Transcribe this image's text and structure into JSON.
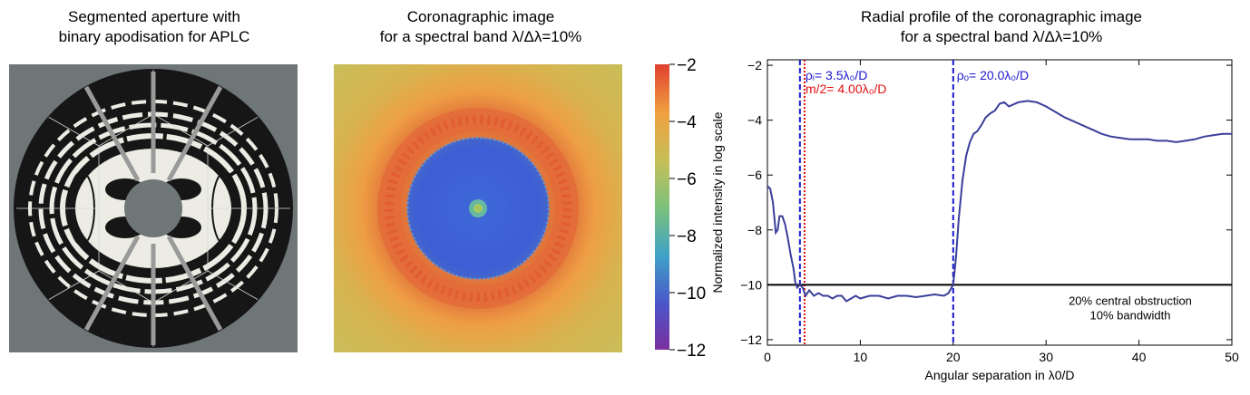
{
  "panels": {
    "aperture": {
      "title_line1": "Segmented aperture with",
      "title_line2": "binary apodisation for APLC"
    },
    "coronagraph": {
      "title_line1": "Coronagraphic image",
      "title_line2": "for a spectral band λ/Δλ=10%"
    },
    "profile": {
      "title_line1": "Radial profile of the coronagraphic image",
      "title_line2": "for a spectral band λ/Δλ=10%"
    }
  },
  "colorbar": {
    "ticks": [
      -2,
      -4,
      -6,
      -8,
      -10,
      -12
    ],
    "tick_labels": [
      "−2",
      "−4",
      "−6",
      "−8",
      "−10",
      "−12"
    ],
    "range": [
      -12,
      -2
    ],
    "colors": [
      "#7b2fa0",
      "#4a55c8",
      "#3fa2c8",
      "#7cc17a",
      "#c6bf58",
      "#f0a040",
      "#e04030"
    ]
  },
  "chart_data": {
    "type": "line",
    "title": "Radial profile of the coronagraphic image for a spectral band λ/Δλ=10%",
    "xlabel": "Angular separation in λ0/D",
    "ylabel": "Normalized intensity in log scale",
    "xlim": [
      0,
      50
    ],
    "ylim": [
      -12.2,
      -1.8
    ],
    "xticks": [
      0,
      10,
      20,
      30,
      40,
      50
    ],
    "yticks": [
      -2,
      -4,
      -6,
      -8,
      -10,
      -12
    ],
    "ytick_labels": [
      "−2",
      "−4",
      "−6",
      "−8",
      "−10",
      "−12"
    ],
    "series": [
      {
        "name": "Radial profile",
        "color": "#3a3f9a",
        "x": [
          0,
          0.3,
          0.6,
          0.9,
          1.1,
          1.3,
          1.6,
          1.9,
          2.2,
          2.5,
          2.8,
          3.0,
          3.2,
          3.5,
          3.8,
          4.1,
          4.5,
          5,
          5.5,
          6,
          6.5,
          7,
          7.5,
          8,
          8.5,
          9,
          9.5,
          10,
          11,
          12,
          13,
          14,
          15,
          16,
          17,
          18,
          19,
          19.5,
          20,
          20.3,
          20.6,
          21,
          21.4,
          21.8,
          22.2,
          22.6,
          23,
          23.5,
          24,
          24.5,
          25,
          25.5,
          26,
          27,
          28,
          29,
          30,
          31,
          32,
          33,
          34,
          35,
          36,
          37,
          38,
          39,
          40,
          41,
          42,
          43,
          44,
          45,
          46,
          47,
          48,
          49,
          50
        ],
        "y": [
          -6.4,
          -6.5,
          -7.0,
          -8.1,
          -8.0,
          -7.5,
          -7.5,
          -7.8,
          -8.3,
          -8.9,
          -9.4,
          -9.9,
          -10.1,
          -10.0,
          -10.1,
          -10.4,
          -10.2,
          -10.4,
          -10.3,
          -10.4,
          -10.4,
          -10.5,
          -10.4,
          -10.4,
          -10.6,
          -10.5,
          -10.4,
          -10.5,
          -10.4,
          -10.4,
          -10.5,
          -10.4,
          -10.4,
          -10.45,
          -10.4,
          -10.35,
          -10.4,
          -10.3,
          -10.0,
          -9.0,
          -7.6,
          -6.2,
          -5.3,
          -4.8,
          -4.5,
          -4.4,
          -4.2,
          -3.9,
          -3.75,
          -3.65,
          -3.4,
          -3.35,
          -3.5,
          -3.35,
          -3.3,
          -3.35,
          -3.5,
          -3.7,
          -3.9,
          -4.05,
          -4.2,
          -4.35,
          -4.5,
          -4.6,
          -4.65,
          -4.7,
          -4.7,
          -4.7,
          -4.75,
          -4.75,
          -4.8,
          -4.75,
          -4.7,
          -4.6,
          -4.55,
          -4.5,
          -4.5
        ]
      }
    ],
    "reference_lines": [
      {
        "orientation": "vertical",
        "x": 3.5,
        "color": "#1a1ad0",
        "style": "dashed",
        "label": "ρᵢ= 3.5λ₀/D"
      },
      {
        "orientation": "vertical",
        "x": 4.0,
        "color": "#e01010",
        "style": "dotted",
        "label": "m/2= 4.00λ₀/D"
      },
      {
        "orientation": "vertical",
        "x": 20.0,
        "color": "#1a1ad0",
        "style": "dashed",
        "label": "ρₒ= 20.0λ₀/D"
      },
      {
        "orientation": "horizontal",
        "y": -10,
        "color": "#000000",
        "style": "solid",
        "label": ""
      }
    ],
    "annotations": [
      "20% central obstruction",
      "10% bandwidth"
    ]
  }
}
